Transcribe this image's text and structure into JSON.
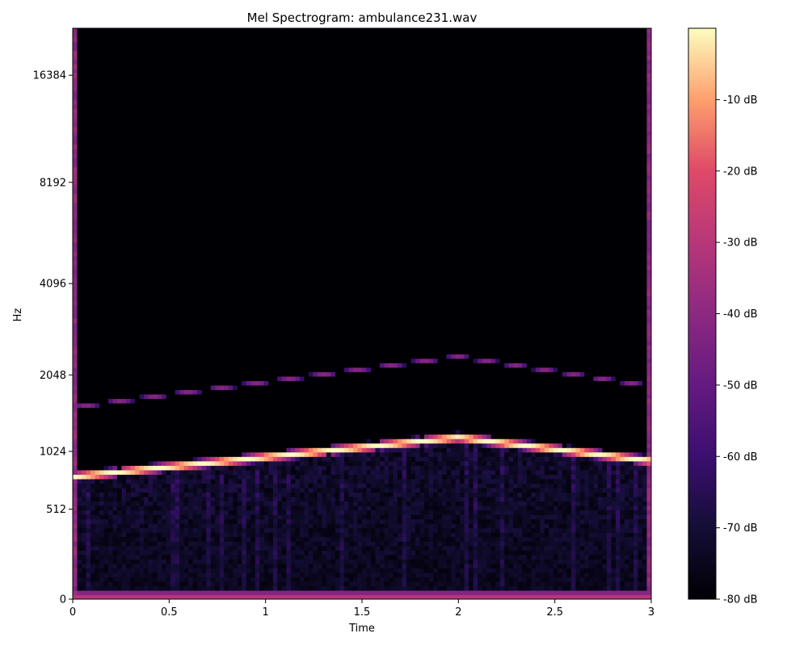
{
  "chart_data": {
    "type": "heatmap",
    "title": "Mel Spectrogram: ambulance231.wav",
    "xlabel": "Time",
    "ylabel": "Hz",
    "x_scale": "linear",
    "y_scale": "mel",
    "xlim": [
      0,
      3
    ],
    "ylim": [
      0,
      22050
    ],
    "x_ticks": [
      {
        "value": 0,
        "label": "0"
      },
      {
        "value": 0.5,
        "label": "0.5"
      },
      {
        "value": 1,
        "label": "1"
      },
      {
        "value": 1.5,
        "label": "1.5"
      },
      {
        "value": 2,
        "label": "2"
      },
      {
        "value": 2.5,
        "label": "2.5"
      },
      {
        "value": 3,
        "label": "3"
      }
    ],
    "y_ticks": [
      {
        "value": 0,
        "label": "0"
      },
      {
        "value": 512,
        "label": "512"
      },
      {
        "value": 1024,
        "label": "1024"
      },
      {
        "value": 2048,
        "label": "2048"
      },
      {
        "value": 4096,
        "label": "4096"
      },
      {
        "value": 8192,
        "label": "8192"
      },
      {
        "value": 16384,
        "label": "16384"
      }
    ],
    "colormap": "magma",
    "colorbar": {
      "vmin": -80,
      "vmax": 0,
      "ticks": [
        {
          "value": -10,
          "label": "-10 dB"
        },
        {
          "value": -20,
          "label": "-20 dB"
        },
        {
          "value": -30,
          "label": "-30 dB"
        },
        {
          "value": -40,
          "label": "-40 dB"
        },
        {
          "value": -50,
          "label": "-50 dB"
        },
        {
          "value": -60,
          "label": "-60 dB"
        },
        {
          "value": -70,
          "label": "-70 dB"
        },
        {
          "value": -80,
          "label": "-80 dB"
        }
      ]
    },
    "features": {
      "fundamental_sweep_hz": [
        {
          "time": 0,
          "freq": 780
        },
        {
          "time": 2,
          "freq": 1180
        },
        {
          "time": 3,
          "freq": 930
        }
      ],
      "harmonic_sweep_hz": [
        {
          "time": 0,
          "freq": 1560
        },
        {
          "time": 2,
          "freq": 2380
        },
        {
          "time": 3,
          "freq": 1870
        }
      ],
      "fundamental_peak_db": 0,
      "harmonic_peak_db": -42,
      "background_db": -80,
      "low_band_db": -30
    },
    "grid": false,
    "legend": "none"
  }
}
